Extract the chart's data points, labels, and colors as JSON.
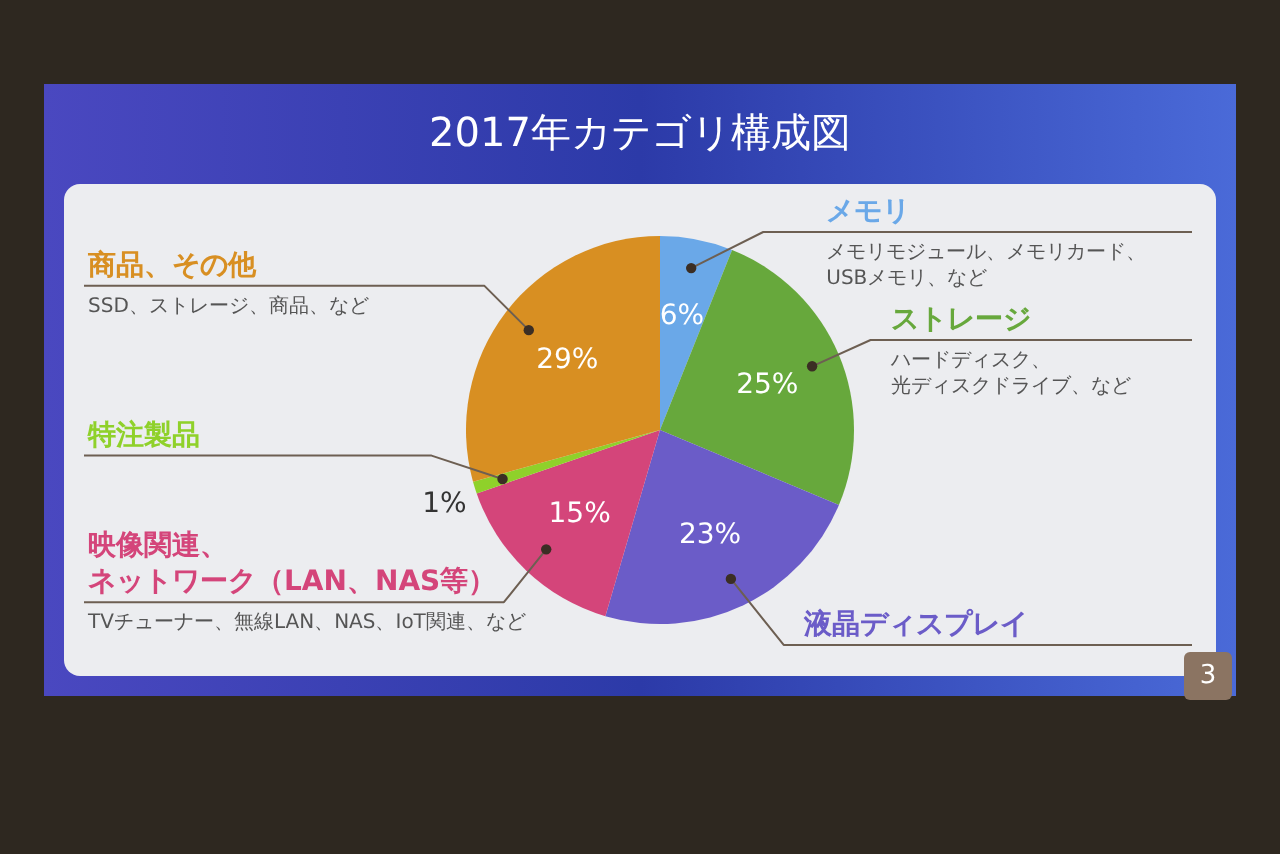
{
  "chart_data": {
    "type": "pie",
    "title": "2017年カテゴリ構成図",
    "categories": [
      "メモリ",
      "ストレージ",
      "液晶ディスプレイ",
      "映像関連、ネットワーク（LAN、NAS等）",
      "特注製品",
      "商品、その他"
    ],
    "values": [
      6,
      25,
      23,
      15,
      1,
      29
    ],
    "colors": [
      "#6aa8e8",
      "#67a83c",
      "#6b5cc8",
      "#d4457a",
      "#8fd12a",
      "#d88f22"
    ],
    "value_labels": [
      "6%",
      "25%",
      "23%",
      "15%",
      "1%",
      "29%"
    ],
    "annotations": [
      {
        "text": "メモリモジュール、メモリカード、USBメモリ、など",
        "x": "メモリ"
      },
      {
        "text": "ハードディスク、光ディスクドライブ、など",
        "x": "ストレージ"
      },
      {
        "text": "TVチューナー、無線LAN、NAS、IoT関連、など",
        "x": "映像関連、ネットワーク（LAN、NAS等）"
      },
      {
        "text": "SSD、ストレージ、商品、など",
        "x": "商品、その他"
      },
      "3"
    ]
  }
}
